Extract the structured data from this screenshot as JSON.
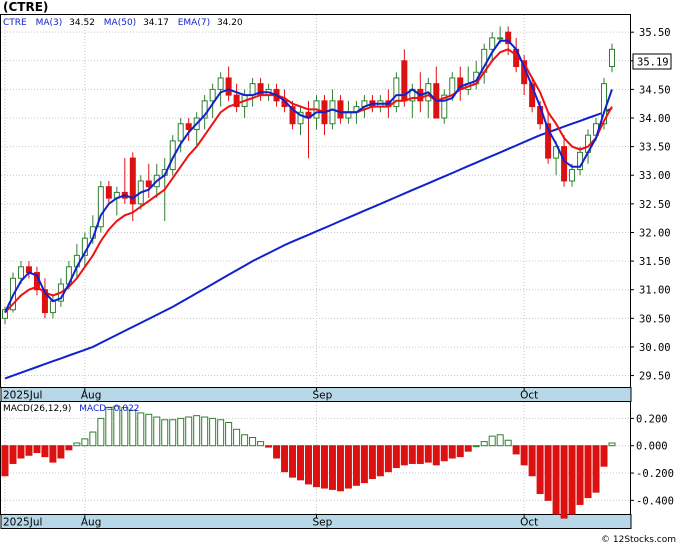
{
  "title": "(CTRE)",
  "legend": {
    "symbol": "CTRE",
    "ma3_label": "MA(3)",
    "ma3_value": "34.52",
    "ma50_label": "MA(50)",
    "ma50_value": "34.17",
    "ema7_label": "EMA(7)",
    "ema7_value": "34.20"
  },
  "macd_legend": {
    "params": "MACD(26,12,9)",
    "value_label": "MACD=0.022"
  },
  "last_price_label": "35.19",
  "footer": "© 12Stocks.com",
  "colors": {
    "up_candle": "#2f7f2f",
    "down_candle": "#dd1111",
    "ma": "#1122cc",
    "ema": "#ee1111",
    "axis_band": "#b8d8e8",
    "macd_pos": "#2f7f2f",
    "macd_neg": "#dd1111"
  },
  "chart_data": [
    {
      "type": "candlestick",
      "title": "(CTRE)",
      "x_axis_labels": [
        "2025Jul",
        "Aug",
        "Sep",
        "Oct"
      ],
      "ylim": [
        29.3,
        35.8
      ],
      "y_ticks": [
        "35.50",
        "35.00",
        "34.50",
        "34.00",
        "33.50",
        "33.00",
        "32.50",
        "32.00",
        "31.50",
        "31.00",
        "30.50",
        "30.00",
        "29.50"
      ],
      "grid": true,
      "candles": [
        [
          30.5,
          30.7,
          30.4,
          30.65
        ],
        [
          30.65,
          31.3,
          30.6,
          31.2
        ],
        [
          31.2,
          31.5,
          31.1,
          31.4
        ],
        [
          31.4,
          31.5,
          31.2,
          31.3
        ],
        [
          31.3,
          31.4,
          30.9,
          31.0
        ],
        [
          31.0,
          31.2,
          30.5,
          30.6
        ],
        [
          30.6,
          30.9,
          30.5,
          30.8
        ],
        [
          30.8,
          31.2,
          30.7,
          31.1
        ],
        [
          31.1,
          31.5,
          31.0,
          31.4
        ],
        [
          31.4,
          31.8,
          31.2,
          31.6
        ],
        [
          31.6,
          32.0,
          31.4,
          31.9
        ],
        [
          31.9,
          32.3,
          31.8,
          32.1
        ],
        [
          32.1,
          32.9,
          32.0,
          32.8
        ],
        [
          32.8,
          32.9,
          32.5,
          32.6
        ],
        [
          32.6,
          32.8,
          32.3,
          32.7
        ],
        [
          32.7,
          33.3,
          32.5,
          32.6
        ],
        [
          33.3,
          33.4,
          32.2,
          32.5
        ],
        [
          32.5,
          33.0,
          32.4,
          32.9
        ],
        [
          32.9,
          33.2,
          32.6,
          32.8
        ],
        [
          32.8,
          33.2,
          32.6,
          33.0
        ],
        [
          33.0,
          33.3,
          32.2,
          33.1
        ],
        [
          33.1,
          33.7,
          33.0,
          33.6
        ],
        [
          33.6,
          34.0,
          33.4,
          33.9
        ],
        [
          33.9,
          34.0,
          33.6,
          33.8
        ],
        [
          33.8,
          34.1,
          33.5,
          34.0
        ],
        [
          34.0,
          34.4,
          33.8,
          34.3
        ],
        [
          34.3,
          34.6,
          34.0,
          34.5
        ],
        [
          34.5,
          34.8,
          34.2,
          34.7
        ],
        [
          34.7,
          34.9,
          34.3,
          34.4
        ],
        [
          34.4,
          34.6,
          34.1,
          34.2
        ],
        [
          34.2,
          34.5,
          34.0,
          34.4
        ],
        [
          34.4,
          34.7,
          34.2,
          34.6
        ],
        [
          34.6,
          34.7,
          34.3,
          34.4
        ],
        [
          34.4,
          34.6,
          34.3,
          34.5
        ],
        [
          34.5,
          34.6,
          34.2,
          34.3
        ],
        [
          34.3,
          34.5,
          34.1,
          34.2
        ],
        [
          34.2,
          34.3,
          33.8,
          33.9
        ],
        [
          33.9,
          34.2,
          33.7,
          34.1
        ],
        [
          34.1,
          34.3,
          33.3,
          34.0
        ],
        [
          34.0,
          34.4,
          33.8,
          34.3
        ],
        [
          34.3,
          34.4,
          33.7,
          33.9
        ],
        [
          33.9,
          34.5,
          33.8,
          34.3
        ],
        [
          34.3,
          34.4,
          33.9,
          34.0
        ],
        [
          34.0,
          34.3,
          33.9,
          34.1
        ],
        [
          34.1,
          34.3,
          33.9,
          34.2
        ],
        [
          34.2,
          34.4,
          34.0,
          34.3
        ],
        [
          34.3,
          34.4,
          34.1,
          34.2
        ],
        [
          34.2,
          34.4,
          34.1,
          34.3
        ],
        [
          34.3,
          34.5,
          34.0,
          34.2
        ],
        [
          34.2,
          34.8,
          34.1,
          34.7
        ],
        [
          35.0,
          35.2,
          34.2,
          34.3
        ],
        [
          34.3,
          34.6,
          34.0,
          34.5
        ],
        [
          34.5,
          34.8,
          34.1,
          34.3
        ],
        [
          34.3,
          34.7,
          34.0,
          34.6
        ],
        [
          34.6,
          34.9,
          34.0,
          34.0
        ],
        [
          34.0,
          34.5,
          33.9,
          34.4
        ],
        [
          34.4,
          34.8,
          34.3,
          34.7
        ],
        [
          34.7,
          34.9,
          34.3,
          34.5
        ],
        [
          34.5,
          34.9,
          34.4,
          34.6
        ],
        [
          34.6,
          35.0,
          34.5,
          34.8
        ],
        [
          34.8,
          35.3,
          34.6,
          35.2
        ],
        [
          35.2,
          35.5,
          35.0,
          35.4
        ],
        [
          35.4,
          35.6,
          35.3,
          35.4
        ],
        [
          35.5,
          35.6,
          35.1,
          35.3
        ],
        [
          35.2,
          35.4,
          34.8,
          34.9
        ],
        [
          35.0,
          35.1,
          34.4,
          34.6
        ],
        [
          34.6,
          34.7,
          34.1,
          34.2
        ],
        [
          34.2,
          34.3,
          33.8,
          33.9
        ],
        [
          33.9,
          34.1,
          33.2,
          33.3
        ],
        [
          33.3,
          33.6,
          33.0,
          33.5
        ],
        [
          33.5,
          33.7,
          32.8,
          32.9
        ],
        [
          32.9,
          33.2,
          32.8,
          33.1
        ],
        [
          33.1,
          33.5,
          33.0,
          33.4
        ],
        [
          33.4,
          33.8,
          33.2,
          33.7
        ],
        [
          33.7,
          34.0,
          33.6,
          33.9
        ],
        [
          33.9,
          34.7,
          33.8,
          34.6
        ],
        [
          34.9,
          35.3,
          34.8,
          35.2
        ]
      ],
      "series": [
        {
          "name": "MA(3)",
          "values": [
            30.6,
            30.9,
            31.15,
            31.3,
            31.25,
            30.95,
            30.8,
            30.85,
            31.1,
            31.4,
            31.65,
            31.9,
            32.3,
            32.5,
            32.6,
            32.65,
            32.6,
            32.7,
            32.75,
            32.9,
            33.0,
            33.3,
            33.55,
            33.75,
            33.9,
            34.05,
            34.25,
            34.45,
            34.5,
            34.45,
            34.4,
            34.4,
            34.45,
            34.45,
            34.4,
            34.3,
            34.15,
            34.05,
            34.0,
            34.1,
            34.1,
            34.15,
            34.1,
            34.1,
            34.1,
            34.2,
            34.25,
            34.25,
            34.25,
            34.4,
            34.4,
            34.5,
            34.4,
            34.45,
            34.3,
            34.3,
            34.35,
            34.55,
            34.6,
            34.65,
            34.9,
            35.15,
            35.35,
            35.35,
            35.2,
            34.9,
            34.55,
            34.2,
            33.8,
            33.55,
            33.25,
            33.15,
            33.15,
            33.4,
            33.65,
            34.1,
            34.5
          ]
        },
        {
          "name": "MA(50)",
          "values": [
            29.45,
            29.5,
            29.55,
            29.6,
            29.65,
            29.7,
            29.75,
            29.8,
            29.85,
            29.9,
            29.95,
            30.0,
            30.07,
            30.14,
            30.21,
            30.28,
            30.35,
            30.42,
            30.49,
            30.56,
            30.63,
            30.7,
            30.78,
            30.86,
            30.94,
            31.02,
            31.1,
            31.18,
            31.26,
            31.34,
            31.42,
            31.5,
            31.57,
            31.64,
            31.71,
            31.78,
            31.84,
            31.9,
            31.96,
            32.02,
            32.08,
            32.14,
            32.2,
            32.26,
            32.32,
            32.38,
            32.44,
            32.5,
            32.56,
            32.62,
            32.68,
            32.74,
            32.8,
            32.86,
            32.92,
            32.98,
            33.04,
            33.1,
            33.16,
            33.22,
            33.28,
            33.34,
            33.4,
            33.46,
            33.52,
            33.58,
            33.64,
            33.7,
            33.75,
            33.8,
            33.85,
            33.9,
            33.95,
            34.0,
            34.05,
            34.1,
            34.17
          ]
        },
        {
          "name": "EMA(7)",
          "values": [
            30.6,
            30.75,
            30.9,
            31.0,
            31.05,
            30.95,
            30.9,
            30.95,
            31.05,
            31.2,
            31.4,
            31.6,
            31.85,
            32.05,
            32.2,
            32.3,
            32.35,
            32.45,
            32.55,
            32.65,
            32.75,
            32.95,
            33.15,
            33.35,
            33.5,
            33.7,
            33.9,
            34.1,
            34.2,
            34.25,
            34.3,
            34.35,
            34.4,
            34.4,
            34.4,
            34.35,
            34.25,
            34.2,
            34.15,
            34.15,
            34.1,
            34.15,
            34.1,
            34.1,
            34.1,
            34.15,
            34.2,
            34.2,
            34.2,
            34.3,
            34.3,
            34.35,
            34.35,
            34.4,
            34.3,
            34.35,
            34.4,
            34.5,
            34.55,
            34.6,
            34.8,
            35.0,
            35.15,
            35.2,
            35.1,
            34.95,
            34.7,
            34.45,
            34.1,
            33.9,
            33.65,
            33.5,
            33.45,
            33.5,
            33.65,
            33.95,
            34.2
          ]
        }
      ]
    },
    {
      "type": "bar",
      "title": "MACD(26,12,9)",
      "ylim": [
        -0.5,
        0.32
      ],
      "y_ticks": [
        "0.200",
        "0.000",
        "-0.200",
        "-0.400"
      ],
      "x_axis_labels": [
        "2025Jul",
        "Aug",
        "Sep",
        "Oct"
      ],
      "values": [
        -0.22,
        -0.13,
        -0.09,
        -0.07,
        -0.05,
        -0.08,
        -0.12,
        -0.09,
        -0.03,
        0.02,
        0.05,
        0.1,
        0.2,
        0.28,
        0.29,
        0.28,
        0.26,
        0.24,
        0.23,
        0.21,
        0.19,
        0.19,
        0.2,
        0.21,
        0.22,
        0.21,
        0.2,
        0.19,
        0.17,
        0.12,
        0.08,
        0.06,
        0.03,
        -0.01,
        -0.09,
        -0.19,
        -0.23,
        -0.25,
        -0.28,
        -0.3,
        -0.31,
        -0.32,
        -0.33,
        -0.31,
        -0.29,
        -0.27,
        -0.24,
        -0.22,
        -0.19,
        -0.16,
        -0.14,
        -0.13,
        -0.13,
        -0.12,
        -0.14,
        -0.11,
        -0.09,
        -0.08,
        -0.04,
        0.0,
        0.03,
        0.07,
        0.08,
        0.04,
        -0.06,
        -0.14,
        -0.22,
        -0.35,
        -0.4,
        -0.5,
        -0.53,
        -0.5,
        -0.43,
        -0.38,
        -0.34,
        -0.15,
        0.02
      ]
    }
  ]
}
